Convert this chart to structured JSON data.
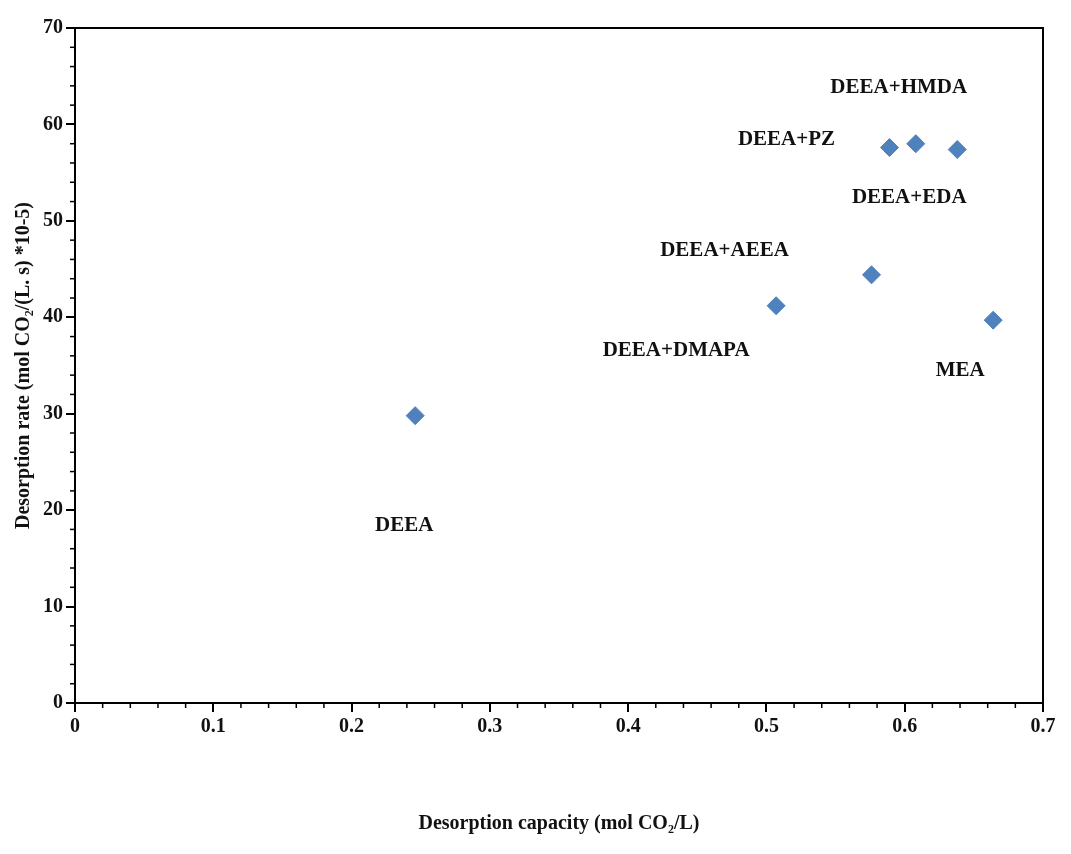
{
  "chart_data": {
    "type": "scatter",
    "xlabel": "Desorption capacity (mol CO₂/L)",
    "ylabel": "Desorption rate (mol CO₂/(L. s) *10-5)",
    "x": [
      0.246,
      0.507,
      0.576,
      0.589,
      0.608,
      0.638,
      0.664
    ],
    "series": [
      {
        "color": "#4f81bd",
        "values": [
          29.8,
          41.2,
          44.4,
          57.6,
          58.0,
          57.4,
          39.7
        ]
      }
    ],
    "marker": "diamond",
    "grid": false,
    "legend": false,
    "xlim": [
      0,
      0.7
    ],
    "xticks": [
      0,
      0.1,
      0.2,
      0.3,
      0.4,
      0.5,
      0.6,
      0.7
    ],
    "ylim": [
      0,
      70
    ],
    "yticks": [
      0,
      10,
      20,
      30,
      40,
      50,
      60,
      70
    ],
    "annotations": [
      {
        "text": "DEEA+HMDA",
        "x": 0.608,
        "y": 58.0
      },
      {
        "text": "DEEA+PZ",
        "x": 0.589,
        "y": 57.6
      },
      {
        "text": "DEEA+EDA",
        "x": 0.638,
        "y": 57.4
      },
      "DEEA+AEEA",
      {
        "text": "DEEA+DMAPA",
        "x": 0.507,
        "y": 41.2
      },
      {
        "text": "MEA",
        "x": 0.664,
        "y": 39.7
      },
      "DEEA"
    ]
  }
}
